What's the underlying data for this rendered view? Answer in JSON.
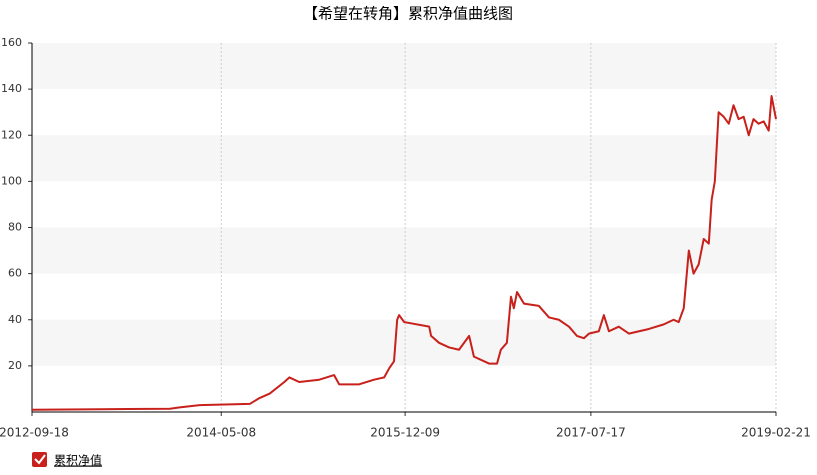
{
  "chart_data": {
    "type": "line",
    "title": "【希望在转角】累积净值曲线图",
    "x": [
      "2012-09-18",
      "2013-04-20",
      "2013-11-27",
      "2013-12-28",
      "2014-03-01",
      "2014-08-06",
      "2014-09-05",
      "2014-10-08",
      "2014-11-23",
      "2014-12-09",
      "2015-01-09",
      "2015-03-13",
      "2015-04-29",
      "2015-05-15",
      "2015-07-17",
      "2015-09-02",
      "2015-10-04",
      "2015-10-20",
      "2015-11-04",
      "2015-11-14",
      "2015-11-20",
      "2015-12-06",
      "2016-02-23",
      "2016-02-29",
      "2016-03-25",
      "2016-04-26",
      "2016-05-27",
      "2016-06-28",
      "2016-07-13",
      "2016-08-30",
      "2016-09-24",
      "2016-10-06",
      "2016-10-25",
      "2016-11-07",
      "2016-11-16",
      "2016-11-26",
      "2016-12-18",
      "2017-02-03",
      "2017-03-07",
      "2017-04-07",
      "2017-05-09",
      "2017-06-03",
      "2017-06-25",
      "2017-07-11",
      "2017-08-11",
      "2017-08-27",
      "2017-09-12",
      "2017-10-13",
      "2017-11-14",
      "2018-01-16",
      "2018-03-04",
      "2018-04-04",
      "2018-04-20",
      "2018-05-06",
      "2018-05-22",
      "2018-06-06",
      "2018-06-22",
      "2018-07-08",
      "2018-07-24",
      "2018-08-02",
      "2018-08-12",
      "2018-08-24",
      "2018-09-09",
      "2018-09-25",
      "2018-10-10",
      "2018-10-26",
      "2018-11-11",
      "2018-11-27",
      "2018-12-12",
      "2018-12-28",
      "2019-01-13",
      "2019-01-29",
      "2019-02-07",
      "2019-02-21"
    ],
    "series": [
      {
        "name": "累积净值",
        "color": "#c8201a",
        "values": [
          1,
          1.2,
          1.4,
          2,
          3,
          3.5,
          6,
          8,
          13,
          15,
          13,
          14,
          16,
          12,
          12,
          14,
          15,
          19,
          22,
          40,
          42,
          39,
          37,
          33,
          30,
          28,
          27,
          33,
          24,
          21,
          21,
          27,
          30,
          50,
          45,
          52,
          47,
          46,
          41,
          40,
          37,
          33,
          32,
          34,
          35,
          42,
          35,
          37,
          34,
          36,
          38,
          40,
          39,
          45,
          70,
          60,
          64,
          75,
          73,
          92,
          100,
          130,
          128,
          125,
          133,
          127,
          128,
          120,
          127,
          125,
          126,
          122,
          137,
          127
        ]
      }
    ],
    "xlim": [
      "2012-09-18",
      "2019-02-21"
    ],
    "xticks": [
      "2012-09-18",
      "2014-05-08",
      "2015-12-09",
      "2017-07-17",
      "2019-02-21"
    ],
    "ylim": [
      0,
      160
    ],
    "yticks": [
      20,
      40,
      60,
      80,
      100,
      120,
      140,
      160
    ],
    "grid": true
  }
}
